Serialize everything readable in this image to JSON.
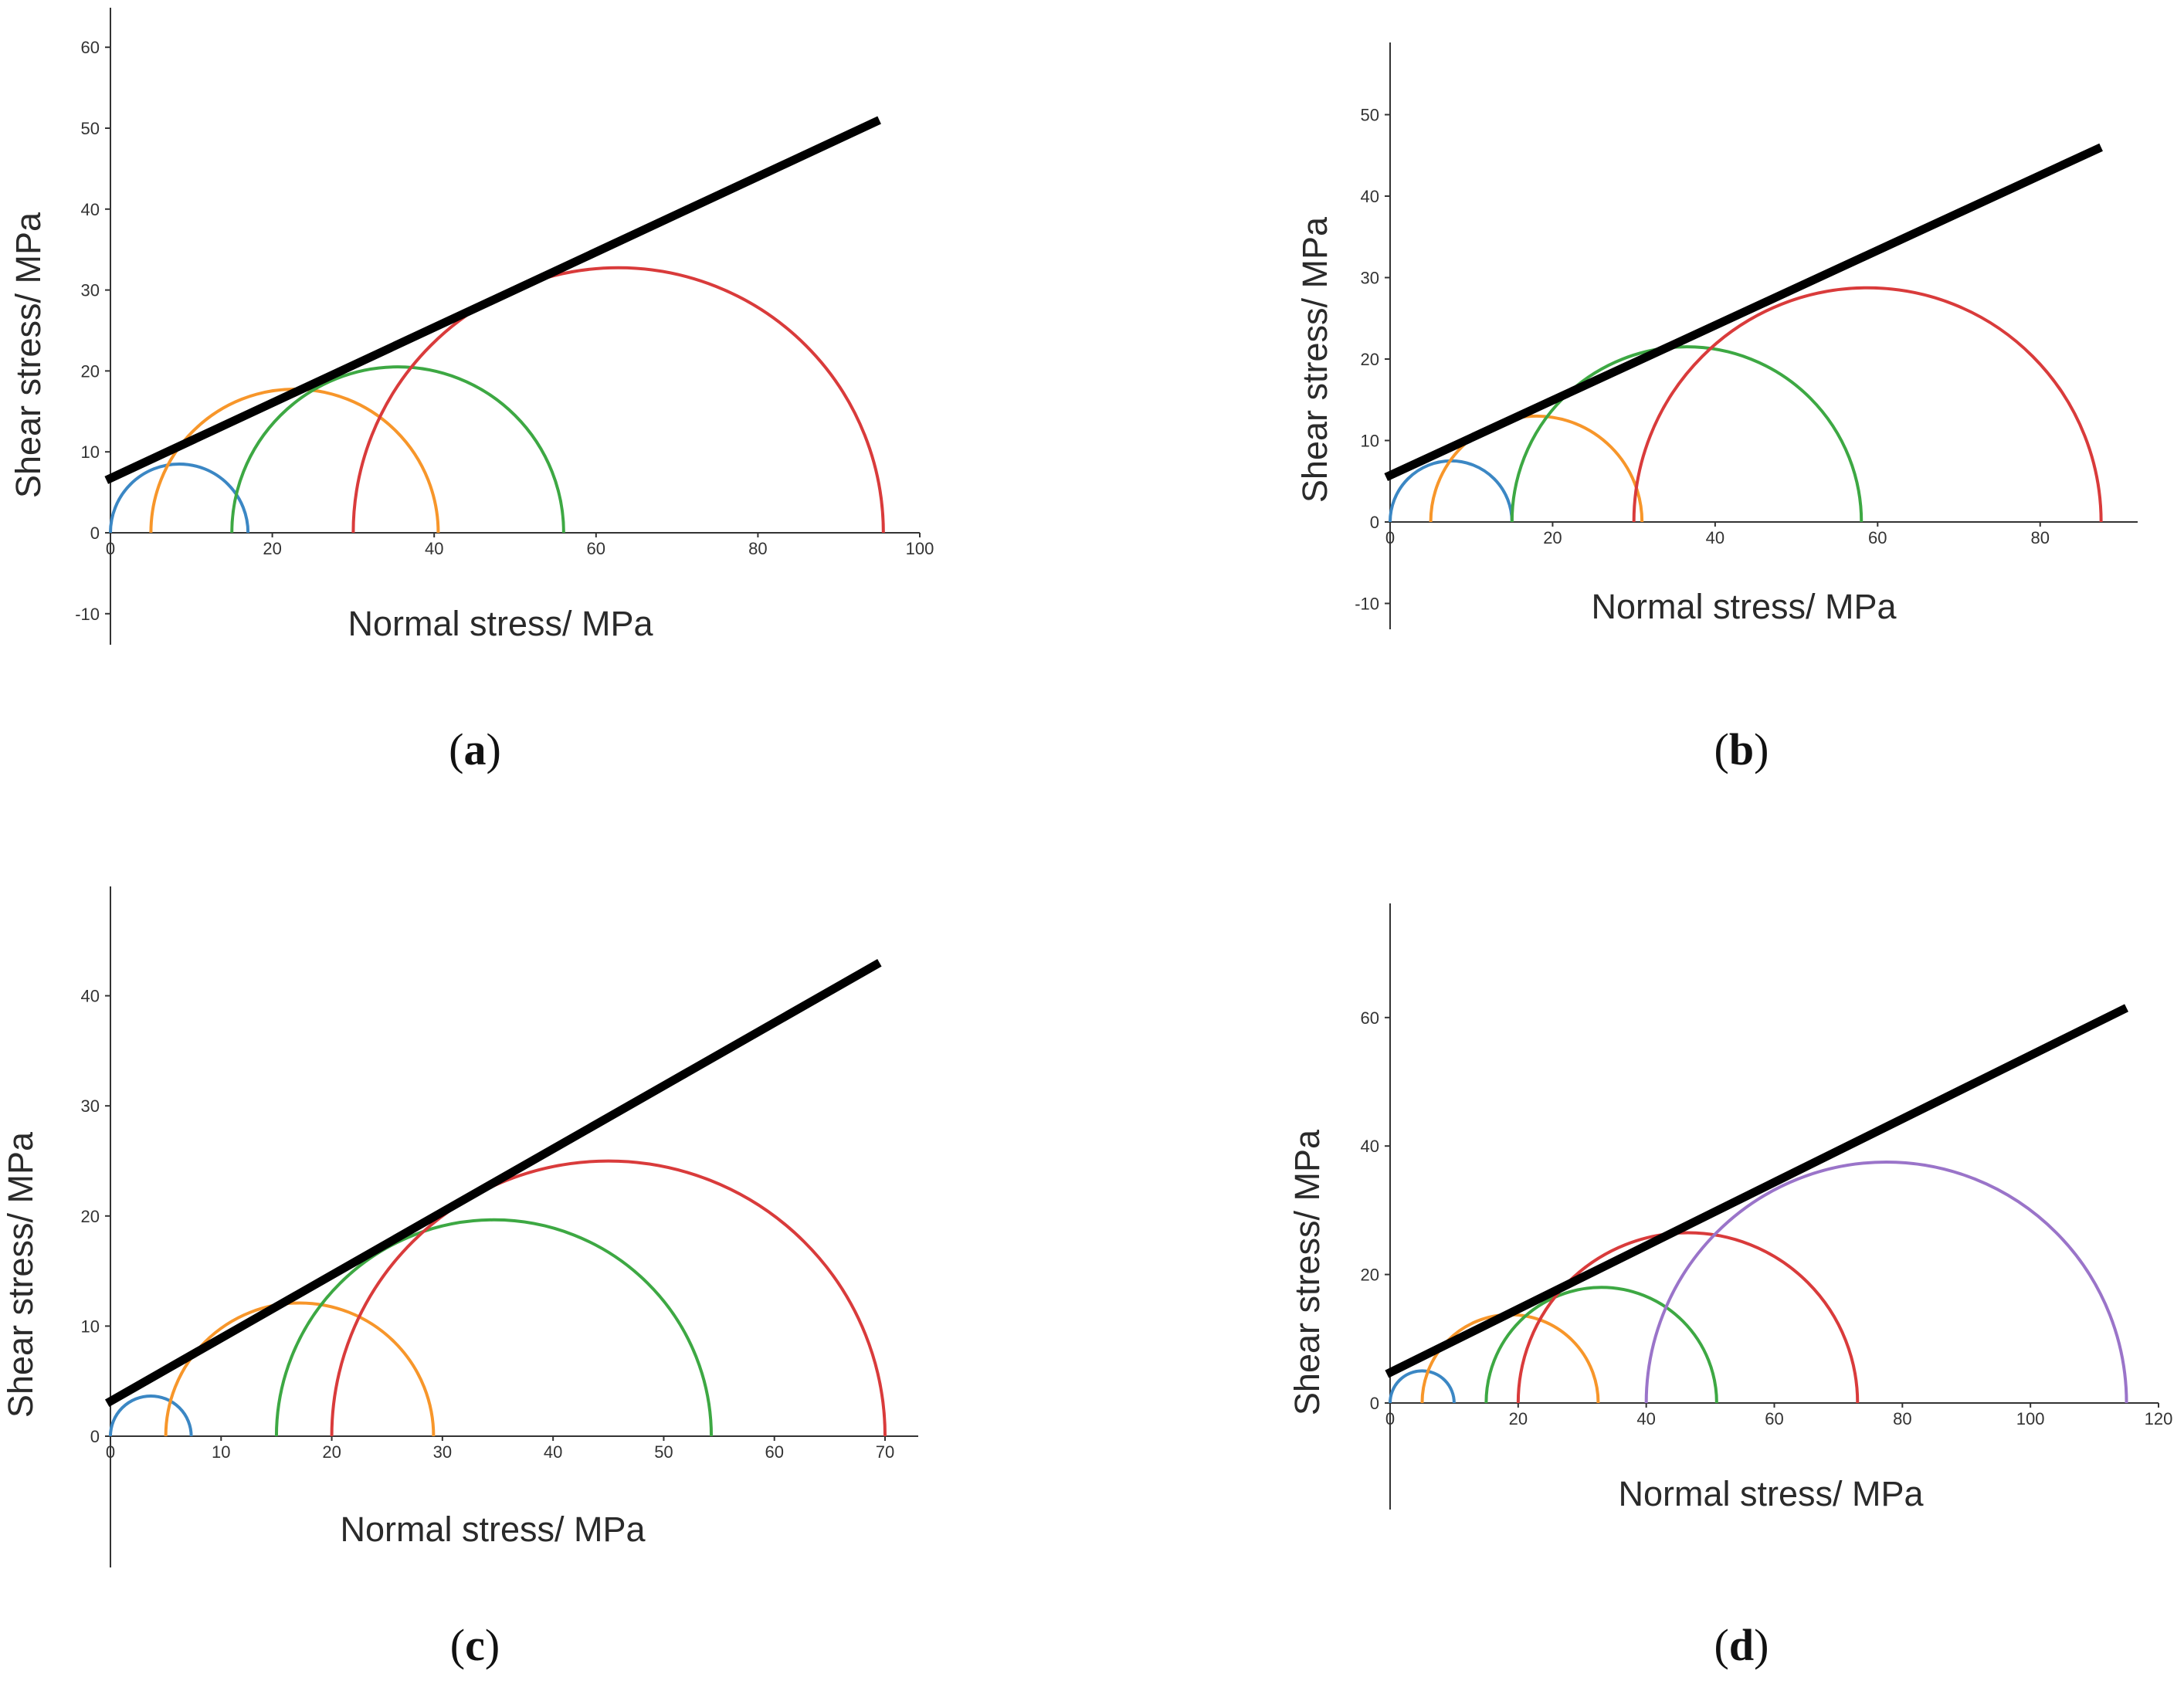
{
  "chart_data": [
    {
      "type": "mohr-circles",
      "panel": "a",
      "xlabel": "Normal stress/ MPa",
      "ylabel": "Shear stress/ MPa",
      "xticks": [
        0,
        20,
        40,
        60,
        80,
        100
      ],
      "yticks": [
        -10,
        0,
        10,
        20,
        30,
        40,
        50,
        60
      ],
      "xlim": [
        0,
        100
      ],
      "ylim": [
        -14,
        64
      ],
      "circles": [
        {
          "name": "circle-1",
          "color": "#3b87c4",
          "sigma3": 0,
          "sigma1": 17
        },
        {
          "name": "circle-2",
          "color": "#f7962a",
          "sigma3": 5,
          "sigma1": 40.5
        },
        {
          "name": "circle-3",
          "color": "#3da843",
          "sigma3": 15,
          "sigma1": 56
        },
        {
          "name": "circle-4",
          "color": "#d93b3b",
          "sigma3": 30,
          "sigma1": 95.5
        }
      ],
      "envelope": {
        "x": [
          -0.5,
          95
        ],
        "y": [
          6.5,
          51
        ]
      }
    },
    {
      "type": "mohr-circles",
      "panel": "b",
      "xlabel": "Normal stress/ MPa",
      "ylabel": "Shear stress/ MPa",
      "xticks": [
        0,
        20,
        40,
        60,
        80
      ],
      "yticks": [
        -10,
        0,
        10,
        20,
        30,
        40,
        50
      ],
      "xlim": [
        0,
        92
      ],
      "ylim": [
        -13,
        59
      ],
      "circles": [
        {
          "name": "circle-1",
          "color": "#3b87c4",
          "sigma3": 0,
          "sigma1": 15
        },
        {
          "name": "circle-2",
          "color": "#f7962a",
          "sigma3": 5,
          "sigma1": 31
        },
        {
          "name": "circle-3",
          "color": "#3da843",
          "sigma3": 15,
          "sigma1": 58
        },
        {
          "name": "circle-4",
          "color": "#d93b3b",
          "sigma3": 30,
          "sigma1": 87.5
        }
      ],
      "envelope": {
        "x": [
          -0.5,
          87.5
        ],
        "y": [
          5.5,
          46
        ]
      }
    },
    {
      "type": "mohr-circles",
      "panel": "c",
      "xlabel": "Normal stress/ MPa",
      "ylabel": "Shear stress/ MPa",
      "xticks": [
        0,
        10,
        20,
        30,
        40,
        50,
        60,
        70
      ],
      "yticks": [
        0,
        10,
        20,
        30,
        40
      ],
      "xlim": [
        0,
        73
      ],
      "ylim": [
        -12,
        50
      ],
      "circles": [
        {
          "name": "circle-1",
          "color": "#3b87c4",
          "sigma3": 0,
          "sigma1": 7.3
        },
        {
          "name": "circle-2",
          "color": "#f7962a",
          "sigma3": 5,
          "sigma1": 29.2
        },
        {
          "name": "circle-3",
          "color": "#3da843",
          "sigma3": 15,
          "sigma1": 54.3
        },
        {
          "name": "circle-4",
          "color": "#d93b3b",
          "sigma3": 20,
          "sigma1": 70
        }
      ],
      "envelope": {
        "x": [
          -0.3,
          69.5
        ],
        "y": [
          3,
          43
        ]
      }
    },
    {
      "type": "mohr-circles",
      "panel": "d",
      "xlabel": "Normal stress/ MPa",
      "ylabel": "Shear stress/ MPa",
      "xticks": [
        0,
        20,
        40,
        60,
        80,
        100,
        120
      ],
      "yticks": [
        0,
        20,
        40,
        60
      ],
      "xlim": [
        0,
        120
      ],
      "ylim": [
        -17,
        77
      ],
      "circles": [
        {
          "name": "circle-1",
          "color": "#3b87c4",
          "sigma3": 0,
          "sigma1": 10
        },
        {
          "name": "circle-2",
          "color": "#f7962a",
          "sigma3": 5,
          "sigma1": 32.5
        },
        {
          "name": "circle-3",
          "color": "#3da843",
          "sigma3": 15,
          "sigma1": 51
        },
        {
          "name": "circle-4",
          "color": "#d93b3b",
          "sigma3": 20,
          "sigma1": 73
        },
        {
          "name": "circle-5",
          "color": "#9a74c9",
          "sigma3": 40,
          "sigma1": 115
        }
      ],
      "envelope": {
        "x": [
          -0.5,
          115
        ],
        "y": [
          4.5,
          61.5
        ]
      }
    }
  ],
  "panels": {
    "a": {
      "open": "(",
      "letter": "a",
      "close": ")"
    },
    "b": {
      "open": "(",
      "letter": "b",
      "close": ")"
    },
    "c": {
      "open": "(",
      "letter": "c",
      "close": ")"
    },
    "d": {
      "open": "(",
      "letter": "d",
      "close": ")"
    }
  }
}
